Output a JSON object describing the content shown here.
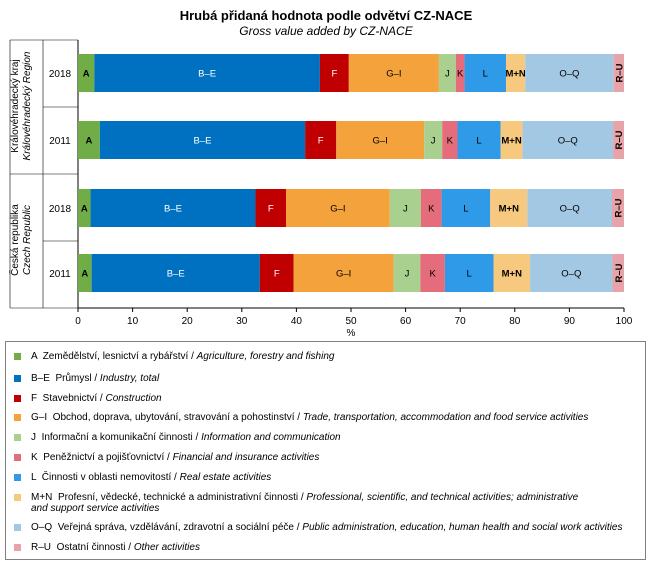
{
  "chart_data": {
    "type": "bar",
    "orientation": "horizontal",
    "stacked": true,
    "title": "Hrubá přidaná hodnota podle odvětví CZ-NACE",
    "subtitle": "Gross value  added  by CZ-NACE",
    "xlabel": "%",
    "xlim": [
      0,
      100
    ],
    "xticks": [
      "0",
      "10",
      "20",
      "30",
      "40",
      "50",
      "60",
      "70",
      "80",
      "90",
      "100"
    ],
    "groups": [
      {
        "cz": "Královéhradecký kraj",
        "en": "Královéhradecký Region"
      },
      {
        "cz": "Česká republika",
        "en": "Czech Republic"
      }
    ],
    "categories": [
      "2018",
      "2011",
      "2018",
      "2011"
    ],
    "series": [
      {
        "name": "A",
        "color": "#70AD47",
        "values": [
          3.0,
          4.0,
          2.3,
          2.5
        ]
      },
      {
        "name": "B–E",
        "color": "#0070C0",
        "values": [
          41.3,
          37.6,
          30.2,
          30.8
        ]
      },
      {
        "name": "F",
        "color": "#C00000",
        "values": [
          5.3,
          5.7,
          5.6,
          6.2
        ]
      },
      {
        "name": "G–I",
        "color": "#F4A23C",
        "values": [
          16.5,
          16.1,
          19.0,
          18.3
        ]
      },
      {
        "name": "J",
        "color": "#A9D08E",
        "values": [
          3.1,
          3.3,
          5.7,
          4.9
        ]
      },
      {
        "name": "K",
        "color": "#E46C7B",
        "values": [
          1.6,
          2.8,
          3.8,
          4.5
        ]
      },
      {
        "name": "L",
        "color": "#2F9BE8",
        "values": [
          7.6,
          7.9,
          8.9,
          8.9
        ]
      },
      {
        "name": "M+N",
        "color": "#F7C97E",
        "values": [
          3.5,
          4.0,
          6.8,
          6.7
        ]
      },
      {
        "name": "O–Q",
        "color": "#A3C8E4",
        "values": [
          16.2,
          16.6,
          15.5,
          15.1
        ]
      },
      {
        "name": "R–U",
        "color": "#E8A3A9",
        "values": [
          1.9,
          2.0,
          2.2,
          2.1
        ]
      }
    ]
  },
  "legend": [
    {
      "code": "A",
      "cz": "Zemědělství, lesnictví a rybářství / ",
      "en": "Agriculture, forestry and fishing",
      "en2": "",
      "color": "#70AD47"
    },
    {
      "code": "B–E",
      "cz": "Průmysl / ",
      "en": "Industry, total",
      "en2": "",
      "color": "#0070C0"
    },
    {
      "code": "F",
      "cz": "Stavebnictví / ",
      "en": "Construction",
      "en2": "",
      "color": "#C00000"
    },
    {
      "code": "G–I",
      "cz": "Obchod, doprava, ubytování, stravování a pohostinství / ",
      "en": "Trade, transportation, accommodation and food service activities",
      "en2": "",
      "color": "#F4A23C"
    },
    {
      "code": "J",
      "cz": "Informační a komunikační činnosti / ",
      "en": "Information and communication",
      "en2": "",
      "color": "#A9D08E"
    },
    {
      "code": "K",
      "cz": "Peněžnictví a pojišťovnictví / ",
      "en": "Financial and insurance activities",
      "en2": "",
      "color": "#E46C7B"
    },
    {
      "code": "L",
      "cz": "Činnosti v oblasti nemovitostí / ",
      "en": "Real estate activities",
      "en2": "",
      "color": "#2F9BE8"
    },
    {
      "code": "M+N",
      "cz": "Profesní, vědecké, technické a administrativní činnosti / ",
      "en": "Professional, scientific, and technical activities; administrative",
      "en2": "and support service activities",
      "color": "#F7C97E"
    },
    {
      "code": "O–Q",
      "cz": "Veřejná správa, vzdělávání, zdravotní a sociální péče / ",
      "en": "Public administration, education, human health and social work activities",
      "en2": "",
      "color": "#A3C8E4"
    },
    {
      "code": "R–U",
      "cz": "Ostatní činnosti / ",
      "en": "Other activities",
      "en2": "",
      "color": "#E8A3A9"
    }
  ]
}
